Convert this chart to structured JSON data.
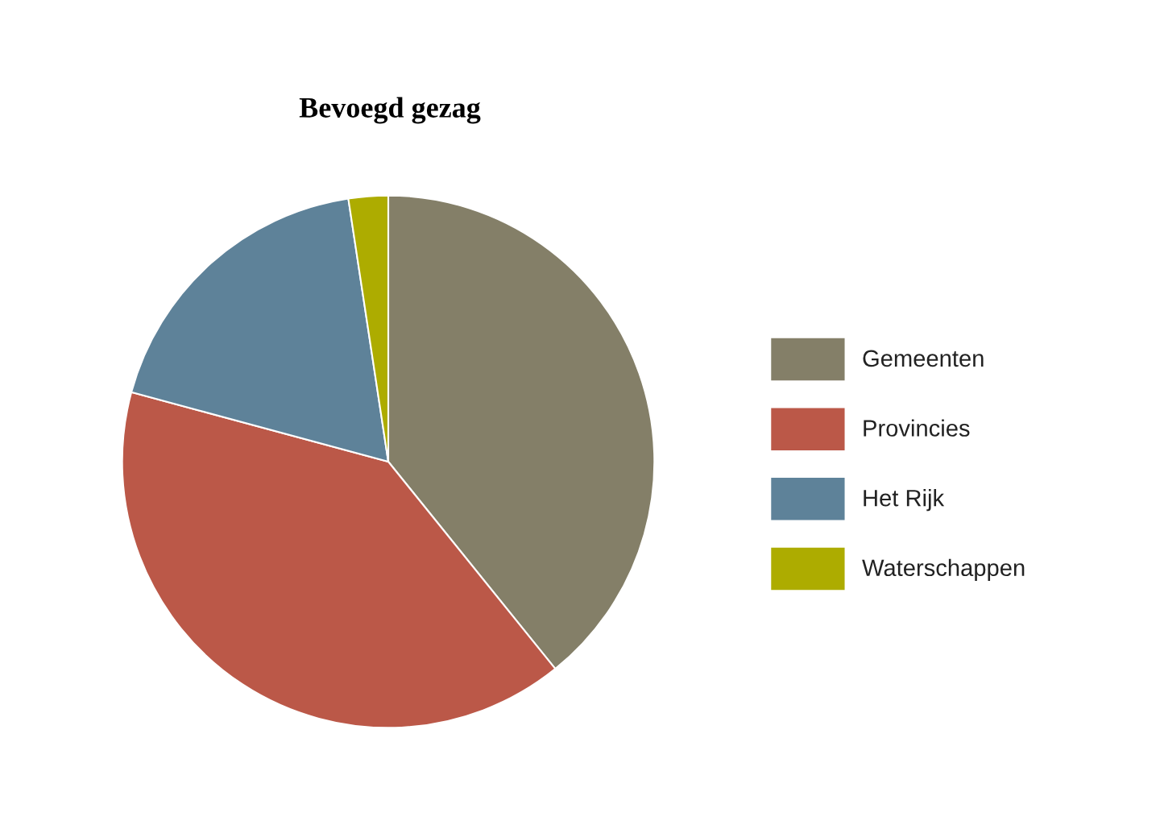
{
  "chart_data": {
    "type": "pie",
    "title": "Bevoegd gezag",
    "categories": [
      "Gemeenten",
      "Provincies",
      "Het Rijk",
      "Waterschappen"
    ],
    "values": [
      39.2,
      40.0,
      18.4,
      2.4
    ],
    "colors": [
      "#847f68",
      "#bb5848",
      "#5e8299",
      "#adac00"
    ],
    "legend": "right"
  }
}
